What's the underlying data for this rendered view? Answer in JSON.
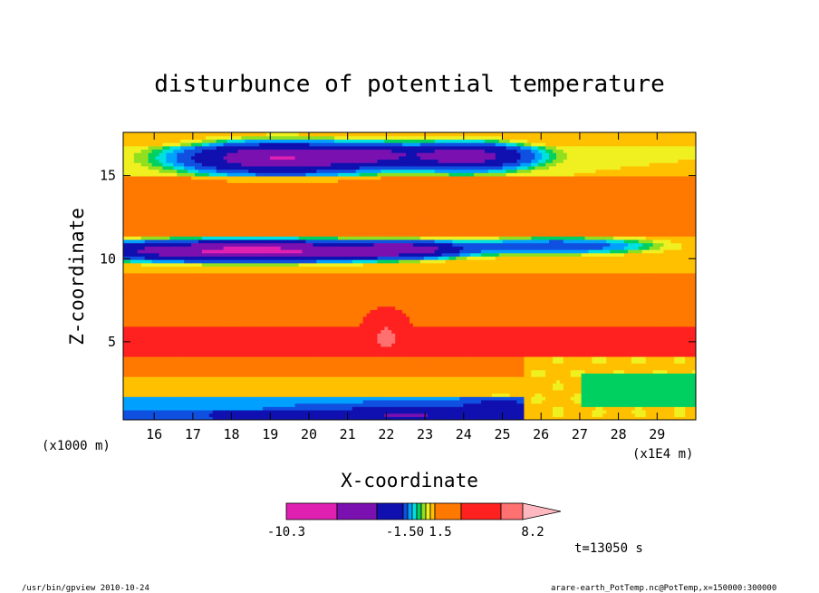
{
  "chart_data": {
    "type": "heatmap",
    "title": "disturbunce of potential temperature",
    "xlabel": "X-coordinate",
    "ylabel": "Z-coordinate",
    "x_unit_left": "(x1000 m)",
    "x_unit_right": "(x1E4 m)",
    "xlim": [
      15.2,
      30.0
    ],
    "ylim": [
      0.3,
      17.6
    ],
    "x_ticks": [
      16,
      17,
      18,
      19,
      20,
      21,
      22,
      23,
      24,
      25,
      26,
      27,
      28,
      29
    ],
    "y_ticks": [
      5,
      10,
      15
    ],
    "colorbar": {
      "colors": [
        "#e020b0",
        "#7a10b0",
        "#1010b0",
        "#1050e0",
        "#00a0ff",
        "#00e0e0",
        "#00d060",
        "#90e020",
        "#f0f020",
        "#ffc000",
        "#ff7800",
        "#ff2020",
        "#ff7070",
        "#ffb8c0"
      ],
      "labels": [
        "-10.3",
        "-1.50",
        "1.5",
        "8.2"
      ]
    },
    "time_label": "t=13050 s"
  },
  "footer": {
    "left": "/usr/bin/gpview  2010-10-24",
    "right": "arare-earth_PotTemp.nc@PotTemp,x=150000:300000"
  }
}
